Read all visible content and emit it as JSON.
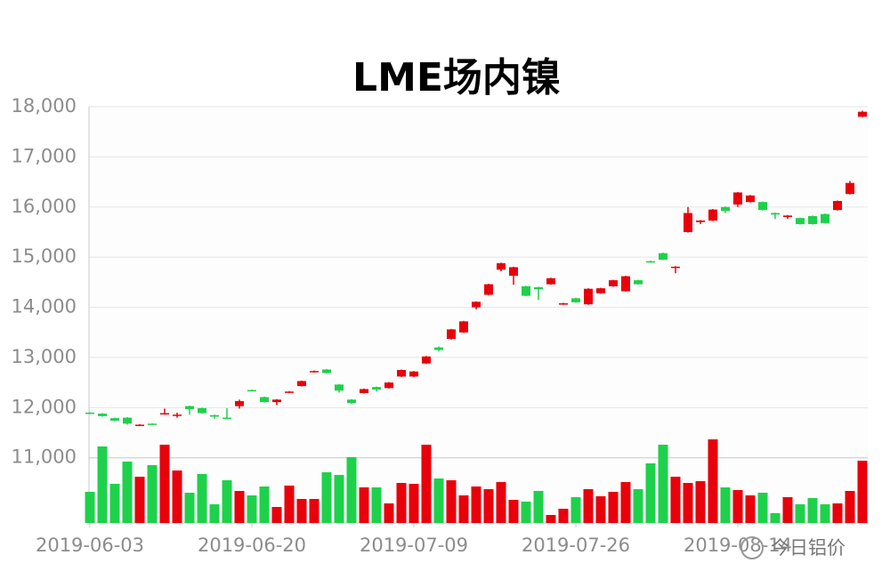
{
  "chart_data": {
    "type": "candlestick",
    "title": "LME场内镍",
    "categories": [
      "2019-06-03",
      null,
      null,
      null,
      null,
      null,
      null,
      null,
      null,
      null,
      null,
      null,
      null,
      "2019-06-20",
      null,
      null,
      null,
      null,
      null,
      null,
      null,
      null,
      null,
      null,
      null,
      null,
      "2019-07-09",
      null,
      null,
      null,
      null,
      null,
      null,
      null,
      null,
      null,
      null,
      null,
      null,
      "2019-07-26",
      null,
      null,
      null,
      null,
      null,
      null,
      null,
      null,
      null,
      null,
      null,
      null,
      "2019-08-14",
      null,
      null,
      null,
      null,
      null,
      null,
      null,
      null,
      null,
      null
    ],
    "open": [
      11900,
      11880,
      11790,
      11800,
      11640,
      11680,
      11870,
      11840,
      12030,
      11990,
      11850,
      11800,
      12030,
      12350,
      12210,
      12110,
      12300,
      12430,
      12710,
      12760,
      12460,
      12160,
      12290,
      12410,
      12390,
      12620,
      12620,
      12880,
      13200,
      13370,
      13500,
      14000,
      14250,
      14750,
      14630,
      14420,
      14400,
      14460,
      14060,
      14180,
      14060,
      14280,
      14420,
      14320,
      14540,
      14920,
      15080,
      14790,
      15500,
      15700,
      15730,
      16000,
      16050,
      16100,
      16100,
      15880,
      15800,
      15780,
      15820,
      15860,
      15940,
      16260,
      17800
    ],
    "high": [
      11910,
      11890,
      11800,
      11810,
      11670,
      11690,
      11980,
      11900,
      12040,
      12000,
      11860,
      11990,
      12160,
      12360,
      12220,
      12170,
      12330,
      12540,
      12740,
      12770,
      12470,
      12170,
      12380,
      12420,
      12510,
      12760,
      12730,
      13030,
      13220,
      13570,
      13730,
      14120,
      14470,
      14890,
      14810,
      14430,
      14410,
      14590,
      14090,
      14190,
      14380,
      14390,
      14550,
      14630,
      14550,
      14930,
      15090,
      14820,
      16000,
      15740,
      15960,
      16010,
      16300,
      16240,
      16110,
      15890,
      15840,
      15790,
      15830,
      15870,
      16130,
      16520,
      17920
    ],
    "low": [
      11880,
      11820,
      11730,
      11660,
      11630,
      11660,
      11860,
      11800,
      11860,
      11880,
      11780,
      11770,
      11980,
      12340,
      12100,
      12050,
      12290,
      12420,
      12700,
      12680,
      12300,
      12080,
      12280,
      12320,
      12380,
      12610,
      12610,
      12870,
      13120,
      13360,
      13490,
      13960,
      14240,
      14720,
      14450,
      14220,
      14150,
      14450,
      14050,
      14090,
      14050,
      14270,
      14410,
      14310,
      14450,
      14890,
      14940,
      14680,
      15490,
      15660,
      15720,
      15880,
      16000,
      16090,
      15930,
      15760,
      15760,
      15650,
      15650,
      15670,
      15930,
      16250,
      17790
    ],
    "close": [
      11890,
      11830,
      11740,
      11680,
      11660,
      11670,
      11890,
      11860,
      11970,
      11890,
      11820,
      11780,
      12130,
      12340,
      12110,
      12160,
      12320,
      12530,
      12730,
      12690,
      12340,
      12090,
      12370,
      12360,
      12500,
      12750,
      12720,
      13020,
      13150,
      13560,
      13720,
      14110,
      14460,
      14880,
      14800,
      14230,
      14360,
      14580,
      14080,
      14100,
      14370,
      14380,
      14540,
      14620,
      14460,
      14900,
      14950,
      14810,
      15880,
      15730,
      15950,
      15920,
      16290,
      16230,
      15940,
      15850,
      15830,
      15660,
      15660,
      15680,
      16120,
      16480,
      17900
    ],
    "volume": [
      35,
      86,
      44,
      69,
      52,
      65,
      88,
      59,
      34,
      55,
      21,
      48,
      36,
      31,
      41,
      18,
      42,
      27,
      27,
      57,
      54,
      74,
      40,
      40,
      22,
      45,
      44,
      88,
      50,
      48,
      31,
      41,
      38,
      46,
      26,
      24,
      36,
      9,
      16,
      29,
      38,
      30,
      35,
      46,
      38,
      67,
      88,
      52,
      45,
      47,
      94,
      40,
      37,
      31,
      34,
      11,
      29,
      21,
      28,
      21,
      22,
      36,
      70
    ],
    "up_color": "#e8000b",
    "down_color": "#1ed14b",
    "ylim": [
      9700,
      18000
    ],
    "yticks": [
      {
        "value": 11000,
        "label": "11,000"
      },
      {
        "value": 12000,
        "label": "12,000"
      },
      {
        "value": 13000,
        "label": "13,000"
      },
      {
        "value": 14000,
        "label": "14,000"
      },
      {
        "value": 15000,
        "label": "15,000"
      },
      {
        "value": 16000,
        "label": "16,000"
      },
      {
        "value": 17000,
        "label": "17,000"
      },
      {
        "value": 18000,
        "label": "18,000"
      }
    ],
    "y2lim": [
      0,
      100
    ],
    "grid": true
  },
  "watermark": "今日铝价"
}
